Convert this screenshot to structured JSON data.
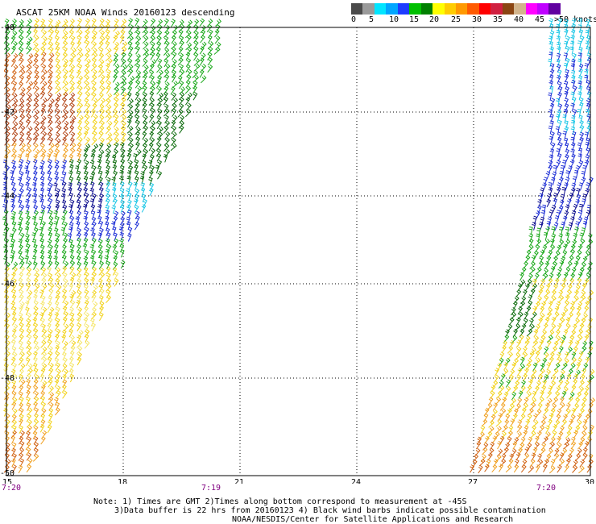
{
  "title": "ASCAT 25KM NOAA Winds 20160123 descending",
  "legend": {
    "colors": [
      "#4a4a4a",
      "#9a9a9a",
      "#00e5ff",
      "#00a6ff",
      "#1e3cff",
      "#00c000",
      "#008000",
      "#ffff00",
      "#ffcc00",
      "#ff9900",
      "#ff5a00",
      "#ff0000",
      "#d02040",
      "#8b4513",
      "#d2b48c",
      "#ff00ff",
      "#c000ff",
      "#6000a0"
    ],
    "labels": [
      "0",
      "5",
      "10",
      "15",
      "20",
      "25",
      "30",
      "35",
      "40",
      "45",
      ">50 knots"
    ]
  },
  "axes": {
    "lat_labels": [
      "-40",
      "-42",
      "-44",
      "-46",
      "-48",
      "-50"
    ],
    "lon_labels": [
      "15",
      "18",
      "21",
      "24",
      "27",
      "30"
    ]
  },
  "times": {
    "left": "7:20",
    "middle": "7:19",
    "right": "7:20"
  },
  "notes": {
    "line1": "Note: 1) Times are GMT 2)Times along bottom correspond to measurement at -45S",
    "line2": "3)Data buffer is 22 hrs from 20160123 4) Black wind barbs indicate possible contamination",
    "line3": "NOAA/NESDIS/Center for Satellite Applications and Research"
  },
  "wind_palette": {
    "blue": "#1e2fd6",
    "darkblue": "#0a0a8c",
    "cyan": "#19c6e6",
    "green": "#1aa81a",
    "darkgreen": "#0a6a0a",
    "yellow": "#f2d21a",
    "lightyellow": "#f5e66a",
    "orange": "#f0a020",
    "darkorange": "#d06010",
    "brown": "#b04010"
  }
}
